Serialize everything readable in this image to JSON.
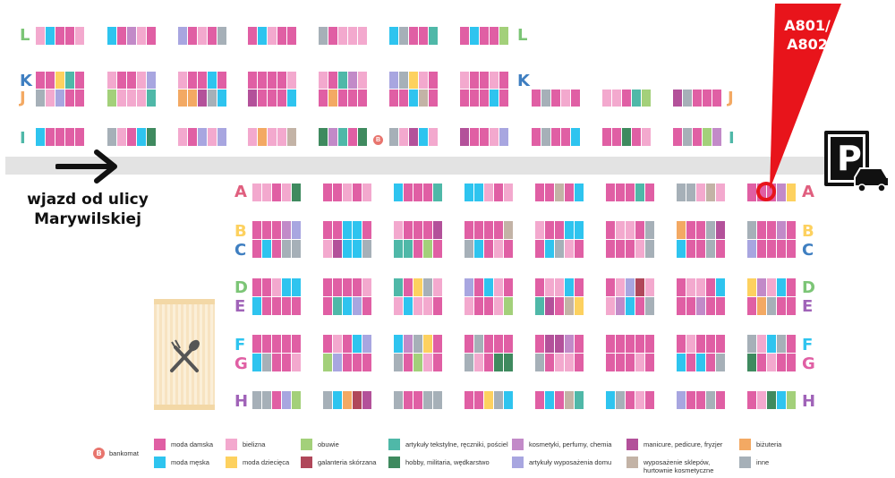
{
  "colors": {
    "moda_damska": "#e05fa4",
    "moda_meska": "#2ec4ef",
    "bielizna": "#f3a9ce",
    "moda_dziecieca": "#fdd15f",
    "obuwie": "#a3d07a",
    "galanteria_skorzana": "#b0475a",
    "artykuly_tekstylne": "#4fb8a8",
    "hobby": "#3f8a5f",
    "kosmetyki": "#c28ac8",
    "artykuly_domu": "#a8a6e0",
    "manicure": "#b3519a",
    "wyposazenie": "#c3b3a6",
    "bizuteria": "#f3a963",
    "inne": "#a6b0b8",
    "road": "#e3e3e3",
    "callout": "#e8141b"
  },
  "rows_left": {
    "L": {
      "label": "L",
      "color": "#7cc576"
    },
    "K": {
      "label": "K",
      "color": "#3f7fc1"
    },
    "J": {
      "label": "J",
      "color": "#f3a963"
    },
    "I": {
      "label": "I",
      "color": "#4fb8a8"
    }
  },
  "rows_main": {
    "A": {
      "label": "A",
      "color": "#e05f7f"
    },
    "B": {
      "label": "B",
      "color": "#fdd15f"
    },
    "C": {
      "label": "C",
      "color": "#3f7fc1"
    },
    "D": {
      "label": "D",
      "color": "#7cc576"
    },
    "E": {
      "label": "E",
      "color": "#a063b8"
    },
    "F": {
      "label": "F",
      "color": "#2ec4ef"
    },
    "G": {
      "label": "G",
      "color": "#e05fa4"
    },
    "H": {
      "label": "H",
      "color": "#a063b8"
    }
  },
  "entry_text": {
    "line1": "wjazd od ulicy",
    "line2": "Marywilskiej"
  },
  "callout": {
    "line1": "A801/",
    "line2": "A802"
  },
  "parking": {
    "letter": "P"
  },
  "atm": {
    "symbol": "B",
    "label": "bankomat"
  },
  "legend": [
    {
      "key": "moda_damska",
      "label": "moda damska"
    },
    {
      "key": "moda_meska",
      "label": "moda męska"
    },
    {
      "key": "bielizna",
      "label": "bielizna"
    },
    {
      "key": "moda_dziecieca",
      "label": "moda dziecięca"
    },
    {
      "key": "obuwie",
      "label": "obuwie"
    },
    {
      "key": "galanteria_skorzana",
      "label": "galanteria skórzana"
    },
    {
      "key": "artykuly_tekstylne",
      "label": "artykuły tekstylne, ręczniki, pościel"
    },
    {
      "key": "hobby",
      "label": "hobby, militaria, wędkarstwo"
    },
    {
      "key": "kosmetyki",
      "label": "kosmetyki, perfumy, chemia"
    },
    {
      "key": "artykuly_domu",
      "label": "artykuły wyposażenia domu"
    },
    {
      "key": "manicure",
      "label": "manicure, pedicure, fryzjer"
    },
    {
      "key": "wyposazenie",
      "label": "wyposażenie sklepów,\nhurtownie kosmetyczne"
    },
    {
      "key": "bizuteria",
      "label": "biżuteria"
    },
    {
      "key": "inne",
      "label": "inne"
    }
  ]
}
